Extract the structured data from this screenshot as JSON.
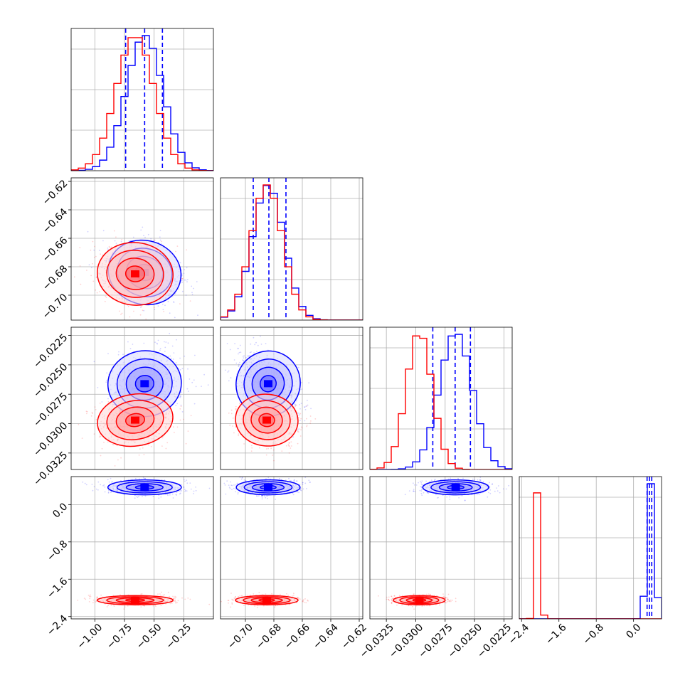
{
  "chart_data": {
    "type": "corner",
    "parameters": [
      {
        "range": [
          -1.2,
          0.0
        ],
        "ticks": [
          -1.0,
          -0.75,
          -0.5,
          -0.25
        ],
        "tick_labels": [
          "−1.00",
          "−0.75",
          "−0.50",
          "−0.25"
        ]
      },
      {
        "range": [
          -0.7175,
          -0.6175
        ],
        "ticks": [
          -0.7,
          -0.68,
          -0.66,
          -0.64,
          -0.62
        ],
        "tick_labels": [
          "−0.70",
          "−0.68",
          "−0.66",
          "−0.64",
          "−0.62"
        ]
      },
      {
        "range": [
          -0.0339,
          -0.0218
        ],
        "ticks": [
          -0.0325,
          -0.03,
          -0.0275,
          -0.025,
          -0.0225
        ],
        "tick_labels": [
          "−0.0325",
          "−0.0300",
          "−0.0275",
          "−0.0250",
          "−0.0225"
        ]
      },
      {
        "range": [
          -2.45,
          0.6
        ],
        "ticks": [
          -2.4,
          -1.6,
          -0.8,
          0.0
        ],
        "tick_labels": [
          "−2.4",
          "−1.6",
          "−0.8",
          "0.0"
        ]
      }
    ],
    "series": [
      {
        "color": "#0000ff",
        "means": [
          -0.58,
          -0.684,
          -0.0266,
          0.37
        ],
        "sds": [
          0.155,
          0.0112,
          0.0014,
          0.08
        ],
        "correlations": [
          [
            0,
            1,
            -0.3
          ],
          [
            0,
            2,
            0.1
          ],
          [
            1,
            2,
            -0.55
          ]
        ],
        "quantiles": [
          [
            -0.74,
            -0.58,
            -0.43
          ],
          [
            -0.6945,
            -0.6835,
            -0.6715
          ],
          [
            -0.02855,
            -0.02665,
            -0.02535
          ],
          [
            0.29,
            0.34,
            0.39
          ]
        ]
      },
      {
        "color": "#ff0000",
        "means": [
          -0.66,
          -0.685,
          -0.0297,
          -2.05
        ],
        "sds": [
          0.16,
          0.011,
          0.0011,
          0.05
        ],
        "correlations": [
          [
            0,
            1,
            -0.1
          ],
          [
            0,
            2,
            0.15
          ],
          [
            1,
            2,
            -0.1
          ]
        ]
      }
    ]
  }
}
